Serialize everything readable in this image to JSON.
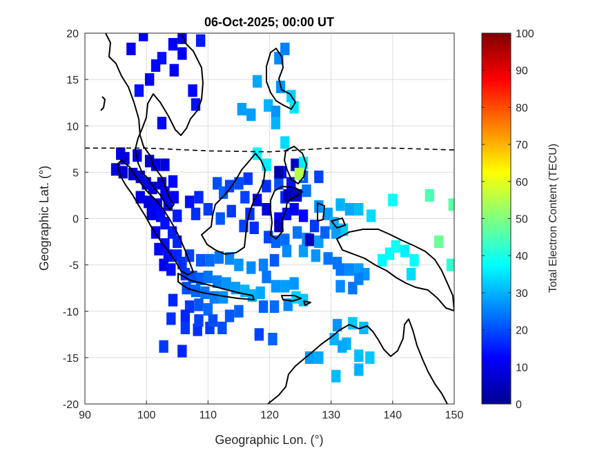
{
  "chart_data": {
    "type": "scatter",
    "title": "06-Oct-2025; 00:00 UT",
    "xlabel": "Geographic Lon. (°)",
    "ylabel": "Geographic Lat. (°)",
    "xlim": [
      90,
      150
    ],
    "ylim": [
      -20,
      20
    ],
    "xticks": [
      90,
      100,
      110,
      120,
      130,
      140,
      150
    ],
    "yticks": [
      -20,
      -15,
      -10,
      -5,
      0,
      5,
      10,
      15,
      20
    ],
    "grid": true,
    "colorbar": {
      "label": "Total Electron Content (TECU)",
      "range": [
        0,
        100
      ],
      "ticks": [
        0,
        10,
        20,
        30,
        40,
        50,
        60,
        70,
        80,
        90,
        100
      ],
      "colormap": "jet"
    },
    "series": [
      {
        "values_format": "[lon, lat, TEC]",
        "points": [
          [
            99.5,
            19.8,
            12
          ],
          [
            97.5,
            18.3,
            11
          ],
          [
            104.3,
            18.8,
            12
          ],
          [
            105.8,
            19.5,
            11
          ],
          [
            108.8,
            19.2,
            15
          ],
          [
            102.5,
            17.3,
            14
          ],
          [
            101.5,
            16.5,
            13
          ],
          [
            104.5,
            16.0,
            12
          ],
          [
            105.8,
            17.8,
            11
          ],
          [
            100.5,
            15.0,
            12
          ],
          [
            98.8,
            13.8,
            14
          ],
          [
            107.5,
            13.8,
            13
          ],
          [
            108.0,
            12.3,
            14
          ],
          [
            102.5,
            10.3,
            13
          ],
          [
            122.5,
            18.3,
            25
          ],
          [
            121.5,
            17.3,
            26
          ],
          [
            118.0,
            14.8,
            29
          ],
          [
            121.8,
            14.2,
            27
          ],
          [
            123.5,
            13.2,
            33
          ],
          [
            119.8,
            12.2,
            30
          ],
          [
            115.5,
            11.8,
            28
          ],
          [
            117.0,
            11.2,
            28
          ],
          [
            121.0,
            11.5,
            27
          ],
          [
            124.0,
            12.0,
            35
          ],
          [
            121.0,
            10.3,
            30
          ],
          [
            122.5,
            8.2,
            34
          ],
          [
            118.0,
            7.0,
            37
          ],
          [
            119.5,
            5.8,
            36
          ],
          [
            95.8,
            7.0,
            11
          ],
          [
            96.5,
            6.5,
            9
          ],
          [
            98.5,
            6.8,
            10
          ],
          [
            100.5,
            6.2,
            8
          ],
          [
            101.5,
            5.8,
            10
          ],
          [
            103.0,
            5.8,
            9
          ],
          [
            95.0,
            5.3,
            9
          ],
          [
            96.2,
            5.0,
            8
          ],
          [
            97.8,
            4.8,
            7
          ],
          [
            99.0,
            4.5,
            9
          ],
          [
            100.0,
            3.8,
            11
          ],
          [
            101.0,
            3.3,
            10
          ],
          [
            102.5,
            3.8,
            8
          ],
          [
            104.3,
            4.0,
            13
          ],
          [
            103.0,
            2.8,
            11
          ],
          [
            99.0,
            2.3,
            10
          ],
          [
            100.3,
            1.8,
            9
          ],
          [
            101.8,
            1.5,
            12
          ],
          [
            103.5,
            1.5,
            13
          ],
          [
            104.5,
            2.3,
            12
          ],
          [
            100.8,
            0.5,
            11
          ],
          [
            102.3,
            0.3,
            13
          ],
          [
            103.0,
            -0.5,
            14
          ],
          [
            104.2,
            -1.5,
            15
          ],
          [
            101.5,
            -1.5,
            12
          ],
          [
            103.0,
            -2.8,
            14
          ],
          [
            105.0,
            -2.5,
            16
          ],
          [
            102.0,
            -3.3,
            13
          ],
          [
            103.5,
            -4.0,
            14
          ],
          [
            105.0,
            -4.0,
            16
          ],
          [
            102.8,
            -5.0,
            12
          ],
          [
            104.0,
            -5.5,
            14
          ],
          [
            106.3,
            -6.0,
            18
          ],
          [
            107.5,
            -6.3,
            20
          ],
          [
            108.8,
            -6.5,
            22
          ],
          [
            110.0,
            -6.3,
            24
          ],
          [
            111.5,
            -6.8,
            25
          ],
          [
            113.0,
            -7.0,
            27
          ],
          [
            114.5,
            -7.5,
            28
          ],
          [
            116.0,
            -7.8,
            30
          ],
          [
            117.2,
            -8.3,
            30
          ],
          [
            118.5,
            -8.0,
            29
          ],
          [
            106.5,
            -7.5,
            20
          ],
          [
            108.0,
            -7.8,
            22
          ],
          [
            109.5,
            -8.0,
            24
          ],
          [
            111.0,
            -8.5,
            25
          ],
          [
            112.5,
            -8.5,
            27
          ],
          [
            107.0,
            -9.5,
            18
          ],
          [
            108.5,
            -9.3,
            21
          ],
          [
            110.0,
            -9.8,
            23
          ],
          [
            104.3,
            -8.8,
            16
          ],
          [
            105.8,
            -4.8,
            17
          ],
          [
            107.0,
            -4.0,
            19
          ],
          [
            108.8,
            -4.5,
            21
          ],
          [
            110.3,
            -4.5,
            23
          ],
          [
            111.8,
            -4.2,
            24
          ],
          [
            113.5,
            -4.3,
            26
          ],
          [
            115.0,
            -5.0,
            27
          ],
          [
            117.0,
            -5.3,
            26
          ],
          [
            119.0,
            -5.0,
            25
          ],
          [
            104.0,
            -10.8,
            17
          ],
          [
            106.3,
            -10.5,
            16
          ],
          [
            106.3,
            -11.8,
            18
          ],
          [
            108.3,
            -12.0,
            17
          ],
          [
            110.3,
            -11.8,
            18
          ],
          [
            112.3,
            -11.8,
            20
          ],
          [
            102.8,
            -13.8,
            18
          ],
          [
            105.8,
            -14.3,
            16
          ],
          [
            108.5,
            -11.0,
            19
          ],
          [
            110.8,
            -11.0,
            20
          ],
          [
            113.5,
            -10.5,
            21
          ],
          [
            115.0,
            -10.0,
            22
          ],
          [
            118.3,
            -12.5,
            19
          ],
          [
            120.5,
            -13.0,
            22
          ],
          [
            119.0,
            -9.5,
            22
          ],
          [
            120.8,
            -9.5,
            23
          ],
          [
            123.0,
            -9.3,
            26
          ],
          [
            124.3,
            -8.5,
            33
          ],
          [
            125.5,
            -8.8,
            32
          ],
          [
            119.5,
            -6.3,
            24
          ],
          [
            121.0,
            -7.3,
            27
          ],
          [
            122.5,
            -7.3,
            28
          ],
          [
            124.0,
            -7.0,
            27
          ],
          [
            117.5,
            -1.0,
            17
          ],
          [
            119.8,
            -2.0,
            19
          ],
          [
            121.0,
            -2.5,
            22
          ],
          [
            122.5,
            -2.3,
            23
          ],
          [
            124.5,
            -1.5,
            24
          ],
          [
            122.8,
            -3.5,
            26
          ],
          [
            125.5,
            -3.5,
            28
          ],
          [
            127.5,
            -4.0,
            27
          ],
          [
            129.5,
            -4.3,
            24
          ],
          [
            131.0,
            -4.8,
            24
          ],
          [
            131.5,
            -5.5,
            24
          ],
          [
            133.0,
            -5.5,
            26
          ],
          [
            134.5,
            -5.5,
            28
          ],
          [
            135.5,
            -6.0,
            27
          ],
          [
            131.5,
            -7.3,
            26
          ],
          [
            133.5,
            -7.5,
            24
          ],
          [
            134.5,
            -6.5,
            25
          ],
          [
            120.8,
            -4.5,
            21
          ],
          [
            112.0,
            0.0,
            21
          ],
          [
            113.8,
            0.8,
            18
          ],
          [
            115.8,
            -0.8,
            19
          ],
          [
            116.8,
            0.5,
            17
          ],
          [
            116.0,
            2.3,
            19
          ],
          [
            111.5,
            3.8,
            20
          ],
          [
            112.5,
            2.8,
            22
          ],
          [
            113.5,
            3.5,
            19
          ],
          [
            115.0,
            3.8,
            20
          ],
          [
            116.5,
            4.3,
            18
          ],
          [
            110.0,
            1.0,
            18
          ],
          [
            108.0,
            0.5,
            17
          ],
          [
            105.0,
            0.3,
            15
          ],
          [
            107.0,
            1.8,
            14
          ],
          [
            108.5,
            2.3,
            16
          ],
          [
            119.5,
            3.5,
            17
          ],
          [
            121.5,
            3.8,
            20
          ],
          [
            122.0,
            5.0,
            14
          ],
          [
            122.5,
            2.3,
            16
          ],
          [
            123.5,
            3.8,
            14
          ],
          [
            125.5,
            4.5,
            22
          ],
          [
            126.0,
            3.0,
            24
          ],
          [
            128.0,
            4.5,
            19
          ],
          [
            128.0,
            1.3,
            27
          ],
          [
            129.5,
            0.5,
            28
          ],
          [
            131.5,
            1.5,
            30
          ],
          [
            133.0,
            1.0,
            29
          ],
          [
            134.5,
            1.0,
            31
          ],
          [
            136.5,
            0.3,
            34
          ],
          [
            140.0,
            2.0,
            38
          ],
          [
            130.5,
            -0.5,
            30
          ],
          [
            132.0,
            -1.2,
            32
          ],
          [
            128.0,
            -2.5,
            28
          ],
          [
            126.0,
            -2.2,
            26
          ],
          [
            118.0,
            2.0,
            10
          ],
          [
            119.5,
            1.0,
            9
          ],
          [
            121.5,
            0.0,
            12
          ],
          [
            121.5,
            -0.8,
            6
          ],
          [
            122.8,
            0.5,
            14
          ],
          [
            124.0,
            1.0,
            11
          ],
          [
            125.5,
            0.3,
            13
          ],
          [
            127.3,
            -0.8,
            18
          ],
          [
            129.0,
            -1.5,
            22
          ],
          [
            121.5,
            5.0,
            4
          ],
          [
            124.2,
            5.8,
            7
          ],
          [
            125.5,
            6.0,
            36
          ],
          [
            124.8,
            4.8,
            55
          ],
          [
            123.0,
            2.5,
            5
          ],
          [
            124.5,
            2.5,
            7
          ],
          [
            126.5,
            -2.3,
            6
          ],
          [
            130.8,
            -1.5,
            28
          ],
          [
            131.0,
            -11.5,
            27
          ],
          [
            133.5,
            -11.3,
            32
          ],
          [
            135.3,
            -11.8,
            31
          ],
          [
            130.5,
            -13.0,
            30
          ],
          [
            132.5,
            -13.5,
            30
          ],
          [
            131.8,
            -13.8,
            29
          ],
          [
            134.5,
            -14.8,
            31
          ],
          [
            136.3,
            -15.0,
            32
          ],
          [
            134.5,
            -16.3,
            30
          ],
          [
            130.8,
            -17.0,
            31
          ],
          [
            128.0,
            -15.0,
            29
          ],
          [
            126.5,
            -15.0,
            28
          ],
          [
            138.3,
            -4.5,
            37
          ],
          [
            139.5,
            -3.8,
            38
          ],
          [
            140.5,
            -3.0,
            39
          ],
          [
            142.0,
            -3.5,
            36
          ],
          [
            143.5,
            -4.5,
            38
          ],
          [
            143.0,
            -6.0,
            34
          ],
          [
            146.0,
            2.5,
            45
          ],
          [
            147.5,
            -2.5,
            48
          ],
          [
            149.8,
            1.5,
            46
          ],
          [
            149.5,
            -5.0,
            42
          ]
        ]
      }
    ],
    "annotations": [
      {
        "type": "line",
        "style": "dashed",
        "description": "geomagnetic equator",
        "points": [
          [
            90,
            7.6
          ],
          [
            100,
            7.6
          ],
          [
            110,
            7.3
          ],
          [
            120,
            7.2
          ],
          [
            130,
            7.6
          ],
          [
            140,
            7.6
          ],
          [
            150,
            7.4
          ]
        ]
      }
    ]
  }
}
